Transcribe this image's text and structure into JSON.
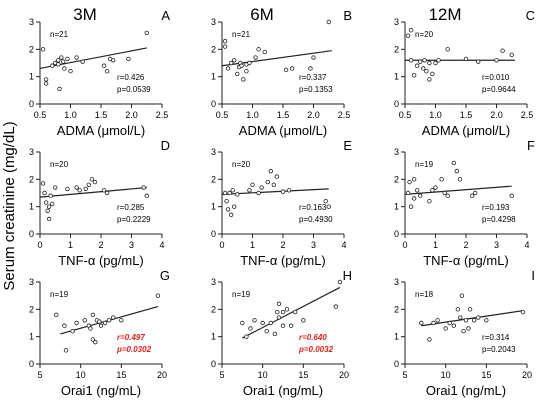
{
  "figure": {
    "column_titles": [
      "3M",
      "6M",
      "12M"
    ],
    "y_axis_label": "Serum creatinine (mg/dL)"
  },
  "chart_data": [
    {
      "id": "A",
      "type": "scatter",
      "row": 0,
      "col": 0,
      "xlabel": "ADMA (μmol/L)",
      "xlim": [
        0.5,
        2.5
      ],
      "ylim": [
        0,
        3
      ],
      "xticks": [
        "0.5",
        "1.0",
        "1.5",
        "2.0",
        "2.5"
      ],
      "yticks": [
        "0",
        "1",
        "2",
        "3"
      ],
      "n_label": "n=21",
      "r_label": "r=0.426",
      "p_label": "p=0.0539",
      "significant": false,
      "trend": [
        [
          0.5,
          1.3
        ],
        [
          2.25,
          2.05
        ]
      ],
      "points": [
        [
          0.55,
          2.0
        ],
        [
          0.6,
          0.9
        ],
        [
          0.6,
          0.75
        ],
        [
          0.7,
          1.4
        ],
        [
          0.75,
          1.5
        ],
        [
          0.8,
          1.6
        ],
        [
          0.8,
          1.45
        ],
        [
          0.82,
          0.55
        ],
        [
          0.85,
          1.7
        ],
        [
          0.88,
          1.55
        ],
        [
          0.9,
          1.3
        ],
        [
          0.95,
          1.65
        ],
        [
          1.0,
          1.2
        ],
        [
          1.1,
          1.7
        ],
        [
          1.2,
          1.55
        ],
        [
          1.55,
          1.4
        ],
        [
          1.6,
          1.2
        ],
        [
          1.65,
          1.65
        ],
        [
          1.7,
          1.6
        ],
        [
          1.95,
          1.65
        ],
        [
          2.25,
          2.6
        ]
      ]
    },
    {
      "id": "B",
      "type": "scatter",
      "row": 0,
      "col": 1,
      "xlabel": "ADMA (μmol/L)",
      "xlim": [
        0.5,
        2.5
      ],
      "ylim": [
        0,
        3
      ],
      "xticks": [
        "0.5",
        "1.0",
        "1.5",
        "2.0",
        "2.5"
      ],
      "yticks": [
        "0",
        "1",
        "2",
        "3"
      ],
      "n_label": "n=21",
      "r_label": "r=0.337",
      "p_label": "p=0.1353",
      "significant": false,
      "trend": [
        [
          0.5,
          1.4
        ],
        [
          2.3,
          1.95
        ]
      ],
      "points": [
        [
          0.55,
          2.3
        ],
        [
          0.55,
          2.1
        ],
        [
          0.6,
          1.3
        ],
        [
          0.65,
          1.5
        ],
        [
          0.7,
          1.6
        ],
        [
          0.75,
          1.1
        ],
        [
          0.78,
          1.35
        ],
        [
          0.8,
          1.5
        ],
        [
          0.82,
          1.4
        ],
        [
          0.85,
          0.9
        ],
        [
          0.9,
          1.2
        ],
        [
          0.9,
          1.45
        ],
        [
          0.95,
          1.5
        ],
        [
          1.05,
          1.7
        ],
        [
          1.1,
          2.0
        ],
        [
          1.2,
          1.9
        ],
        [
          1.55,
          1.25
        ],
        [
          1.65,
          1.3
        ],
        [
          1.95,
          1.3
        ],
        [
          2.0,
          1.7
        ],
        [
          2.25,
          3.0
        ]
      ]
    },
    {
      "id": "C",
      "type": "scatter",
      "row": 0,
      "col": 2,
      "xlabel": "ADMA (μmol/L)",
      "xlim": [
        0.5,
        2.5
      ],
      "ylim": [
        0,
        3
      ],
      "xticks": [
        "0.5",
        "1.0",
        "1.5",
        "2.0",
        "2.5"
      ],
      "yticks": [
        "0",
        "1",
        "2",
        "3"
      ],
      "n_label": "n=20",
      "r_label": "r=0.010",
      "p_label": "p=0.9644",
      "significant": false,
      "trend": [
        [
          0.5,
          1.6
        ],
        [
          2.3,
          1.6
        ]
      ],
      "points": [
        [
          0.55,
          2.5
        ],
        [
          0.6,
          2.7
        ],
        [
          0.6,
          1.6
        ],
        [
          0.65,
          1.05
        ],
        [
          0.7,
          1.4
        ],
        [
          0.75,
          1.55
        ],
        [
          0.8,
          1.3
        ],
        [
          0.82,
          1.6
        ],
        [
          0.85,
          1.2
        ],
        [
          0.9,
          0.9
        ],
        [
          0.9,
          1.5
        ],
        [
          0.95,
          1.1
        ],
        [
          1.0,
          1.5
        ],
        [
          1.05,
          1.6
        ],
        [
          1.2,
          2.0
        ],
        [
          1.5,
          1.65
        ],
        [
          1.7,
          1.55
        ],
        [
          2.0,
          1.6
        ],
        [
          2.1,
          1.95
        ],
        [
          2.25,
          1.8
        ]
      ]
    },
    {
      "id": "D",
      "type": "scatter",
      "row": 1,
      "col": 0,
      "xlabel": "TNF-α (pg/mL)",
      "xlim": [
        0,
        4
      ],
      "ylim": [
        0,
        3
      ],
      "xticks": [
        "0",
        "1",
        "2",
        "3",
        "4"
      ],
      "yticks": [
        "0",
        "1",
        "2",
        "3"
      ],
      "n_label": "n=20",
      "r_label": "r=0.285",
      "p_label": "p=0.2229",
      "significant": false,
      "trend": [
        [
          0,
          1.35
        ],
        [
          3.5,
          1.7
        ]
      ],
      "points": [
        [
          0.1,
          1.85
        ],
        [
          0.15,
          1.5
        ],
        [
          0.2,
          1.15
        ],
        [
          0.25,
          0.85
        ],
        [
          0.3,
          0.55
        ],
        [
          0.3,
          1.0
        ],
        [
          0.35,
          1.4
        ],
        [
          0.4,
          1.1
        ],
        [
          0.5,
          1.7
        ],
        [
          0.9,
          1.65
        ],
        [
          1.2,
          1.7
        ],
        [
          1.3,
          1.6
        ],
        [
          1.5,
          1.65
        ],
        [
          1.6,
          1.8
        ],
        [
          1.7,
          2.0
        ],
        [
          1.8,
          1.9
        ],
        [
          2.1,
          1.6
        ],
        [
          2.2,
          1.5
        ],
        [
          3.4,
          1.7
        ],
        [
          3.5,
          1.4
        ]
      ]
    },
    {
      "id": "E",
      "type": "scatter",
      "row": 1,
      "col": 1,
      "xlabel": "TNF-α (pg/mL)",
      "xlim": [
        0,
        4
      ],
      "ylim": [
        0,
        3
      ],
      "xticks": [
        "0",
        "1",
        "2",
        "3",
        "4"
      ],
      "yticks": [
        "0",
        "1",
        "2",
        "3"
      ],
      "n_label": "n=20",
      "r_label": "r=0.163",
      "p_label": "p=0.4930",
      "significant": false,
      "trend": [
        [
          0,
          1.45
        ],
        [
          3.5,
          1.65
        ]
      ],
      "points": [
        [
          0.1,
          1.5
        ],
        [
          0.15,
          1.2
        ],
        [
          0.2,
          0.9
        ],
        [
          0.25,
          1.5
        ],
        [
          0.3,
          0.7
        ],
        [
          0.35,
          1.6
        ],
        [
          0.4,
          1.0
        ],
        [
          0.5,
          1.45
        ],
        [
          0.9,
          1.6
        ],
        [
          1.0,
          1.8
        ],
        [
          1.2,
          1.5
        ],
        [
          1.3,
          1.7
        ],
        [
          1.5,
          1.9
        ],
        [
          1.6,
          2.3
        ],
        [
          1.7,
          1.8
        ],
        [
          1.8,
          2.1
        ],
        [
          2.0,
          1.55
        ],
        [
          2.2,
          1.6
        ],
        [
          3.4,
          1.2
        ],
        [
          3.5,
          1.0
        ]
      ]
    },
    {
      "id": "F",
      "type": "scatter",
      "row": 1,
      "col": 2,
      "xlabel": "TNF-α (pg/mL)",
      "xlim": [
        0,
        4
      ],
      "ylim": [
        0,
        3
      ],
      "xticks": [
        "0",
        "1",
        "2",
        "3",
        "4"
      ],
      "yticks": [
        "0",
        "1",
        "2",
        "3"
      ],
      "n_label": "n=19",
      "r_label": "r=0.193",
      "p_label": "p=0.4298",
      "significant": false,
      "trend": [
        [
          0,
          1.45
        ],
        [
          3.5,
          1.75
        ]
      ],
      "points": [
        [
          0.1,
          1.5
        ],
        [
          0.15,
          1.9
        ],
        [
          0.2,
          1.0
        ],
        [
          0.3,
          1.3
        ],
        [
          0.3,
          2.0
        ],
        [
          0.4,
          1.6
        ],
        [
          0.5,
          1.4
        ],
        [
          0.8,
          1.2
        ],
        [
          0.9,
          1.6
        ],
        [
          1.0,
          1.7
        ],
        [
          1.2,
          2.0
        ],
        [
          1.3,
          1.5
        ],
        [
          1.4,
          1.4
        ],
        [
          1.6,
          2.6
        ],
        [
          1.7,
          2.3
        ],
        [
          1.8,
          2.0
        ],
        [
          2.2,
          1.4
        ],
        [
          2.3,
          1.5
        ],
        [
          3.5,
          1.4
        ]
      ]
    },
    {
      "id": "G",
      "type": "scatter",
      "row": 2,
      "col": 0,
      "xlabel": "Orai1 (ng/mL)",
      "xlim": [
        5,
        20
      ],
      "ylim": [
        0,
        3
      ],
      "xticks": [
        "5",
        "10",
        "15",
        "20"
      ],
      "yticks": [
        "0",
        "1",
        "2",
        "3"
      ],
      "n_label": "n=19",
      "r_label": "r=0.497",
      "p_label": "p=0.0302",
      "significant": true,
      "trend": [
        [
          7.5,
          1.1
        ],
        [
          19.5,
          2.1
        ]
      ],
      "points": [
        [
          7.0,
          1.8
        ],
        [
          8.0,
          1.4
        ],
        [
          8.2,
          0.5
        ],
        [
          9.0,
          1.2
        ],
        [
          9.5,
          1.5
        ],
        [
          10.5,
          1.6
        ],
        [
          11.0,
          1.4
        ],
        [
          11.2,
          1.3
        ],
        [
          11.5,
          1.8
        ],
        [
          11.5,
          0.9
        ],
        [
          11.8,
          0.8
        ],
        [
          12.0,
          1.6
        ],
        [
          12.3,
          1.55
        ],
        [
          12.5,
          1.4
        ],
        [
          13.0,
          1.5
        ],
        [
          13.5,
          1.6
        ],
        [
          14.0,
          1.7
        ],
        [
          15.0,
          1.6
        ],
        [
          19.5,
          2.5
        ]
      ]
    },
    {
      "id": "H",
      "type": "scatter",
      "row": 2,
      "col": 1,
      "xlabel": "Orai1 (ng/mL)",
      "xlim": [
        5,
        20
      ],
      "ylim": [
        0,
        3
      ],
      "xticks": [
        "5",
        "10",
        "15",
        "20"
      ],
      "yticks": [
        "0",
        "1",
        "2",
        "3"
      ],
      "n_label": "n=19",
      "r_label": "r=0.640",
      "p_label": "p=0.0032",
      "significant": true,
      "trend": [
        [
          7.5,
          0.95
        ],
        [
          19.5,
          2.8
        ]
      ],
      "points": [
        [
          7.5,
          1.5
        ],
        [
          8.0,
          1.0
        ],
        [
          8.5,
          1.3
        ],
        [
          9.0,
          1.6
        ],
        [
          10.0,
          1.5
        ],
        [
          10.5,
          1.2
        ],
        [
          11.0,
          1.5
        ],
        [
          11.5,
          1.1
        ],
        [
          11.8,
          1.9
        ],
        [
          12.0,
          1.7
        ],
        [
          12.0,
          2.2
        ],
        [
          12.5,
          1.4
        ],
        [
          12.5,
          1.9
        ],
        [
          13.0,
          2.0
        ],
        [
          13.5,
          1.4
        ],
        [
          14.0,
          1.9
        ],
        [
          15.0,
          1.6
        ],
        [
          19.0,
          2.1
        ],
        [
          19.5,
          3.0
        ]
      ]
    },
    {
      "id": "I",
      "type": "scatter",
      "row": 2,
      "col": 2,
      "xlabel": "Orai1 (ng/mL)",
      "xlim": [
        5,
        20
      ],
      "ylim": [
        0,
        3
      ],
      "xticks": [
        "5",
        "10",
        "15",
        "20"
      ],
      "yticks": [
        "0",
        "1",
        "2",
        "3"
      ],
      "n_label": "n=18",
      "r_label": "r=0.314",
      "p_label": "p=0.2043",
      "significant": false,
      "trend": [
        [
          7.0,
          1.4
        ],
        [
          19.5,
          1.95
        ]
      ],
      "points": [
        [
          7.0,
          1.5
        ],
        [
          8.0,
          0.9
        ],
        [
          8.5,
          1.5
        ],
        [
          9.0,
          1.6
        ],
        [
          10.0,
          1.3
        ],
        [
          10.5,
          1.5
        ],
        [
          11.0,
          1.4
        ],
        [
          11.5,
          2.0
        ],
        [
          11.8,
          1.7
        ],
        [
          12.0,
          2.5
        ],
        [
          12.2,
          1.2
        ],
        [
          12.5,
          1.6
        ],
        [
          12.8,
          1.3
        ],
        [
          13.0,
          2.0
        ],
        [
          13.5,
          1.6
        ],
        [
          14.0,
          1.7
        ],
        [
          15.0,
          1.6
        ],
        [
          19.5,
          1.9
        ]
      ]
    }
  ],
  "colors": {
    "ink": "#222222",
    "significant": "#e0201b",
    "background": "#ffffff"
  }
}
